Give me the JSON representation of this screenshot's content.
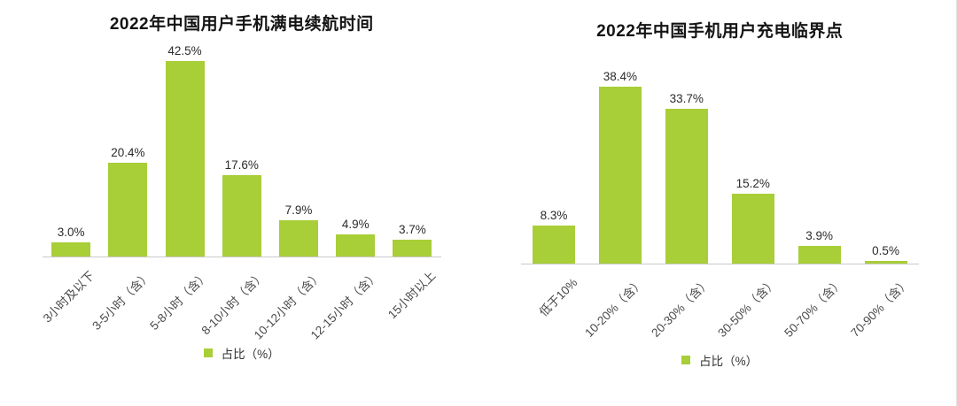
{
  "colors": {
    "bar": "#a8ce38",
    "axis": "#c9c9c9",
    "title": "#141414",
    "value_label": "#2b2b2b",
    "tick_label": "#4a4a4a"
  },
  "chart_data": [
    {
      "type": "bar",
      "title": "2022年中国用户手机满电续航时间",
      "categories": [
        "3小时及以下",
        "3-5小时（含）",
        "5-8小时（含）",
        "8-10小时（含）",
        "10-12小时（含）",
        "12-15小时（含）",
        "15小时以上"
      ],
      "values": [
        3.0,
        20.4,
        42.5,
        17.6,
        7.9,
        4.9,
        3.7
      ],
      "value_labels": [
        "3.0%",
        "20.4%",
        "42.5%",
        "17.6%",
        "7.9%",
        "4.9%",
        "3.7%"
      ],
      "legend": "占比（%）",
      "xlabel": "",
      "ylabel": "",
      "ylim": [
        0,
        45
      ],
      "grid": false,
      "legend_position": "bottom"
    },
    {
      "type": "bar",
      "title": "2022年中国手机用户充电临界点",
      "categories": [
        "低于10%",
        "10-20%（含）",
        "20-30%（含）",
        "30-50%（含）",
        "50-70%（含）",
        "70-90%（含）"
      ],
      "values": [
        8.3,
        38.4,
        33.7,
        15.2,
        3.9,
        0.5
      ],
      "value_labels": [
        "8.3%",
        "38.4%",
        "33.7%",
        "15.2%",
        "3.9%",
        "0.5%"
      ],
      "legend": "占比（%）",
      "xlabel": "",
      "ylabel": "",
      "ylim": [
        0,
        40
      ],
      "grid": false,
      "legend_position": "bottom"
    }
  ]
}
